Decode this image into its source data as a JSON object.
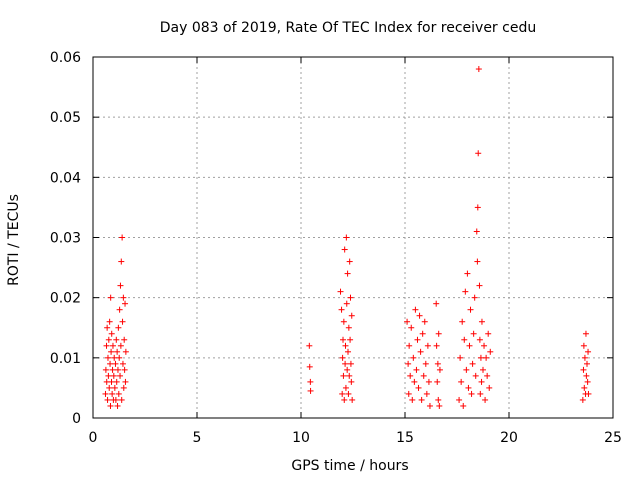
{
  "chart_data": {
    "type": "scatter",
    "title": "Day 083 of 2019, Rate Of TEC Index for receiver cedu",
    "xlabel": "GPS time / hours",
    "ylabel": "ROTI / TECUs",
    "xlim": [
      0,
      25
    ],
    "ylim": [
      0,
      0.06
    ],
    "xticks": [
      0,
      5,
      10,
      15,
      20,
      25
    ],
    "xtick_labels": [
      "0",
      "5",
      "10",
      "15",
      "20",
      "25"
    ],
    "yticks": [
      0,
      0.01,
      0.02,
      0.03,
      0.04,
      0.05,
      0.06
    ],
    "ytick_labels": [
      "0",
      "0.01",
      "0.02",
      "0.03",
      "0.04",
      "0.05",
      "0.06"
    ],
    "grid": true,
    "marker": "+",
    "color": "#ff0000",
    "series": [
      {
        "name": "ROTI",
        "points": [
          [
            0.6,
            0.004
          ],
          [
            0.62,
            0.008
          ],
          [
            0.65,
            0.012
          ],
          [
            0.66,
            0.006
          ],
          [
            0.68,
            0.015
          ],
          [
            0.7,
            0.003
          ],
          [
            0.72,
            0.01
          ],
          [
            0.74,
            0.007
          ],
          [
            0.76,
            0.013
          ],
          [
            0.78,
            0.005
          ],
          [
            0.8,
            0.016
          ],
          [
            0.82,
            0.009
          ],
          [
            0.84,
            0.002
          ],
          [
            0.85,
            0.02
          ],
          [
            0.87,
            0.011
          ],
          [
            0.89,
            0.006
          ],
          [
            0.9,
            0.014
          ],
          [
            0.92,
            0.004
          ],
          [
            0.94,
            0.008
          ],
          [
            0.96,
            0.012
          ],
          [
            0.98,
            0.003
          ],
          [
            1.0,
            0.007
          ],
          [
            1.02,
            0.01
          ],
          [
            1.05,
            0.005
          ],
          [
            1.08,
            0.009
          ],
          [
            1.1,
            0.003
          ],
          [
            1.12,
            0.013
          ],
          [
            1.14,
            0.006
          ],
          [
            1.16,
            0.011
          ],
          [
            1.18,
            0.002
          ],
          [
            1.2,
            0.008
          ],
          [
            1.22,
            0.015
          ],
          [
            1.24,
            0.004
          ],
          [
            1.26,
            0.01
          ],
          [
            1.28,
            0.018
          ],
          [
            1.3,
            0.007
          ],
          [
            1.32,
            0.022
          ],
          [
            1.34,
            0.012
          ],
          [
            1.36,
            0.026
          ],
          [
            1.38,
            0.003
          ],
          [
            1.4,
            0.03
          ],
          [
            1.42,
            0.016
          ],
          [
            1.44,
            0.009
          ],
          [
            1.46,
            0.02
          ],
          [
            1.48,
            0.005
          ],
          [
            1.5,
            0.013
          ],
          [
            1.52,
            0.008
          ],
          [
            1.54,
            0.019
          ],
          [
            1.56,
            0.006
          ],
          [
            1.58,
            0.011
          ],
          [
            10.4,
            0.012
          ],
          [
            10.42,
            0.0085
          ],
          [
            10.45,
            0.006
          ],
          [
            10.46,
            0.0045
          ],
          [
            11.9,
            0.021
          ],
          [
            11.95,
            0.018
          ],
          [
            11.98,
            0.004
          ],
          [
            12.0,
            0.01
          ],
          [
            12.02,
            0.013
          ],
          [
            12.04,
            0.007
          ],
          [
            12.06,
            0.016
          ],
          [
            12.08,
            0.003
          ],
          [
            12.1,
            0.028
          ],
          [
            12.12,
            0.009
          ],
          [
            12.14,
            0.012
          ],
          [
            12.16,
            0.005
          ],
          [
            12.18,
            0.03
          ],
          [
            12.2,
            0.019
          ],
          [
            12.22,
            0.008
          ],
          [
            12.24,
            0.024
          ],
          [
            12.26,
            0.011
          ],
          [
            12.28,
            0.004
          ],
          [
            12.3,
            0.015
          ],
          [
            12.32,
            0.007
          ],
          [
            12.34,
            0.026
          ],
          [
            12.36,
            0.013
          ],
          [
            12.38,
            0.02
          ],
          [
            12.4,
            0.009
          ],
          [
            12.42,
            0.006
          ],
          [
            12.44,
            0.017
          ],
          [
            12.46,
            0.003
          ],
          [
            15.1,
            0.016
          ],
          [
            15.15,
            0.009
          ],
          [
            15.18,
            0.004
          ],
          [
            15.2,
            0.012
          ],
          [
            15.25,
            0.007
          ],
          [
            15.3,
            0.015
          ],
          [
            15.35,
            0.003
          ],
          [
            15.4,
            0.01
          ],
          [
            15.45,
            0.006
          ],
          [
            15.5,
            0.018
          ],
          [
            15.55,
            0.008
          ],
          [
            15.6,
            0.013
          ],
          [
            15.65,
            0.005
          ],
          [
            15.7,
            0.017
          ],
          [
            15.75,
            0.011
          ],
          [
            15.8,
            0.003
          ],
          [
            15.85,
            0.014
          ],
          [
            15.9,
            0.007
          ],
          [
            15.95,
            0.016
          ],
          [
            16.0,
            0.009
          ],
          [
            16.05,
            0.004
          ],
          [
            16.1,
            0.012
          ],
          [
            16.15,
            0.006
          ],
          [
            16.2,
            0.002
          ],
          [
            16.5,
            0.019
          ],
          [
            16.52,
            0.012
          ],
          [
            16.55,
            0.006
          ],
          [
            16.58,
            0.009
          ],
          [
            16.6,
            0.003
          ],
          [
            16.62,
            0.014
          ],
          [
            16.65,
            0.002
          ],
          [
            16.68,
            0.008
          ],
          [
            17.6,
            0.003
          ],
          [
            17.65,
            0.01
          ],
          [
            17.7,
            0.006
          ],
          [
            17.75,
            0.016
          ],
          [
            17.8,
            0.002
          ],
          [
            17.85,
            0.013
          ],
          [
            17.9,
            0.021
          ],
          [
            17.95,
            0.008
          ],
          [
            18.0,
            0.024
          ],
          [
            18.05,
            0.005
          ],
          [
            18.1,
            0.012
          ],
          [
            18.15,
            0.018
          ],
          [
            18.2,
            0.004
          ],
          [
            18.25,
            0.009
          ],
          [
            18.3,
            0.014
          ],
          [
            18.35,
            0.02
          ],
          [
            18.4,
            0.007
          ],
          [
            18.45,
            0.031
          ],
          [
            18.48,
            0.026
          ],
          [
            18.5,
            0.035
          ],
          [
            18.52,
            0.044
          ],
          [
            18.55,
            0.058
          ],
          [
            18.58,
            0.022
          ],
          [
            18.6,
            0.013
          ],
          [
            18.62,
            0.004
          ],
          [
            18.65,
            0.01
          ],
          [
            18.68,
            0.006
          ],
          [
            18.7,
            0.016
          ],
          [
            18.75,
            0.008
          ],
          [
            18.8,
            0.012
          ],
          [
            18.85,
            0.003
          ],
          [
            18.9,
            0.01
          ],
          [
            18.95,
            0.007
          ],
          [
            19.0,
            0.014
          ],
          [
            19.05,
            0.005
          ],
          [
            19.1,
            0.011
          ],
          [
            23.55,
            0.003
          ],
          [
            23.58,
            0.008
          ],
          [
            23.6,
            0.012
          ],
          [
            23.62,
            0.005
          ],
          [
            23.65,
            0.01
          ],
          [
            23.68,
            0.004
          ],
          [
            23.7,
            0.014
          ],
          [
            23.72,
            0.007
          ],
          [
            23.75,
            0.009
          ],
          [
            23.78,
            0.006
          ],
          [
            23.8,
            0.011
          ],
          [
            23.82,
            0.004
          ]
        ]
      }
    ]
  }
}
